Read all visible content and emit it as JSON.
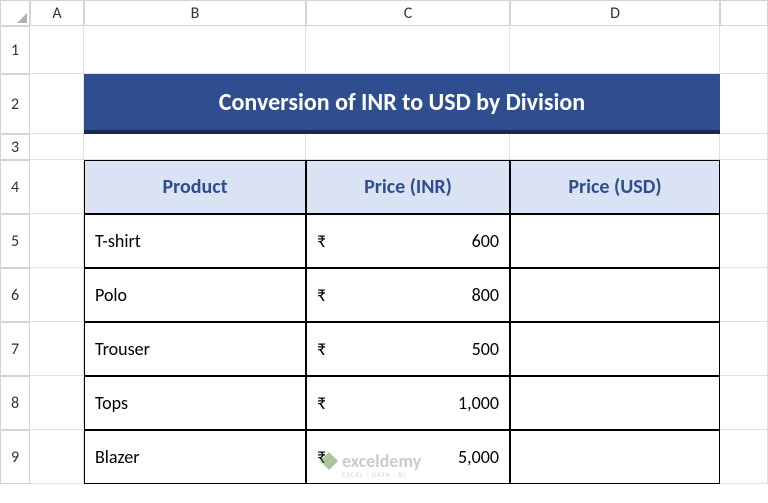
{
  "columns": [
    "A",
    "B",
    "C",
    "D"
  ],
  "rows": [
    "1",
    "2",
    "3",
    "4",
    "5",
    "6",
    "7",
    "8",
    "9"
  ],
  "title": "Conversion of INR to USD by Division",
  "headers": {
    "product": "Product",
    "price_inr": "Price (INR)",
    "price_usd": "Price (USD)"
  },
  "currency_symbol": "₹",
  "products": [
    {
      "name": "T-shirt",
      "price_inr": "600",
      "price_usd": ""
    },
    {
      "name": "Polo",
      "price_inr": "800",
      "price_usd": ""
    },
    {
      "name": "Trouser",
      "price_inr": "500",
      "price_usd": ""
    },
    {
      "name": "Tops",
      "price_inr": "1,000",
      "price_usd": ""
    },
    {
      "name": "Blazer",
      "price_inr": "5,000",
      "price_usd": ""
    }
  ],
  "colors": {
    "title_bg": "#2f4d8f",
    "title_underline": "#1a2850",
    "header_bg": "#dae3f3",
    "header_text": "#2f4d8f",
    "cell_border": "#000000",
    "grid_border": "#d4d4d4"
  },
  "watermark": {
    "main": "exceldemy",
    "sub": "EXCEL · DATA · BI"
  }
}
